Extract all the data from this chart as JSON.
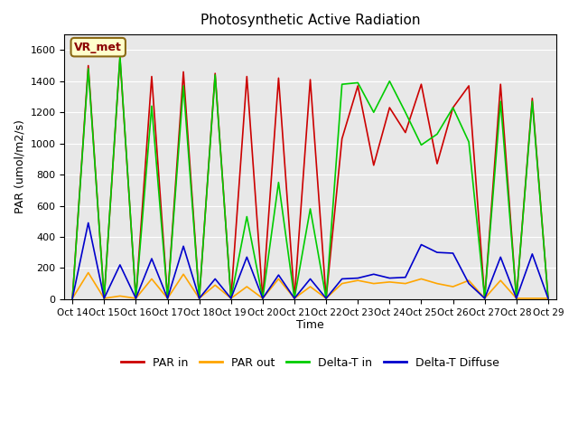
{
  "title": "Photosynthetic Active Radiation",
  "ylabel": "PAR (umol/m2/s)",
  "xlabel": "Time",
  "annotation": "VR_met",
  "ylim": [
    0,
    1700
  ],
  "yticks": [
    0,
    200,
    400,
    600,
    800,
    1000,
    1200,
    1400,
    1600
  ],
  "xtick_positions": [
    0,
    2,
    4,
    6,
    8,
    10,
    12,
    14,
    16,
    18,
    20,
    22,
    24,
    26,
    28,
    30
  ],
  "xtick_labels": [
    "Oct 14",
    "Oct 15",
    "Oct 16",
    "Oct 17",
    "Oct 18",
    "Oct 19",
    "Oct 20",
    "Oct 21",
    "Oct 22",
    "Oct 23",
    "Oct 24",
    "Oct 25",
    "Oct 26",
    "Oct 27",
    "Oct 28",
    "Oct 29"
  ],
  "background_color": "#e8e8e8",
  "par_in_color": "#cc0000",
  "par_out_color": "#ffa500",
  "delta_t_in_color": "#00cc00",
  "delta_t_diffuse_color": "#0000cc",
  "x": [
    0,
    1,
    2,
    3,
    4,
    5,
    6,
    7,
    8,
    9,
    10,
    11,
    12,
    13,
    14,
    15,
    16,
    17,
    18,
    19,
    20,
    21,
    22,
    23,
    24,
    25,
    26,
    27,
    28,
    29,
    30
  ],
  "par_in": [
    5,
    1500,
    5,
    1550,
    5,
    1430,
    5,
    1460,
    5,
    1450,
    5,
    1430,
    5,
    1420,
    5,
    1410,
    5,
    1030,
    1370,
    860,
    1230,
    1070,
    1380,
    870,
    1230,
    1370,
    5,
    1380,
    5,
    1290,
    5
  ],
  "par_out": [
    5,
    170,
    5,
    20,
    5,
    130,
    5,
    160,
    5,
    90,
    5,
    80,
    5,
    130,
    5,
    80,
    5,
    100,
    120,
    100,
    110,
    100,
    130,
    100,
    80,
    120,
    5,
    120,
    5,
    5,
    5
  ],
  "delta_t_in": [
    5,
    1480,
    5,
    1560,
    5,
    1240,
    5,
    1370,
    5,
    1440,
    5,
    530,
    5,
    750,
    5,
    580,
    5,
    1380,
    1390,
    1200,
    1400,
    1200,
    990,
    1060,
    1230,
    1010,
    5,
    1270,
    5,
    1270,
    5
  ],
  "delta_t_diffuse": [
    5,
    490,
    5,
    220,
    5,
    260,
    5,
    340,
    5,
    130,
    5,
    270,
    5,
    155,
    5,
    130,
    5,
    130,
    135,
    160,
    135,
    140,
    350,
    300,
    295,
    100,
    5,
    270,
    5,
    290,
    5
  ],
  "legend_labels": [
    "PAR in",
    "PAR out",
    "Delta-T in",
    "Delta-T Diffuse"
  ],
  "legend_colors": [
    "#cc0000",
    "#ffa500",
    "#00cc00",
    "#0000cc"
  ]
}
